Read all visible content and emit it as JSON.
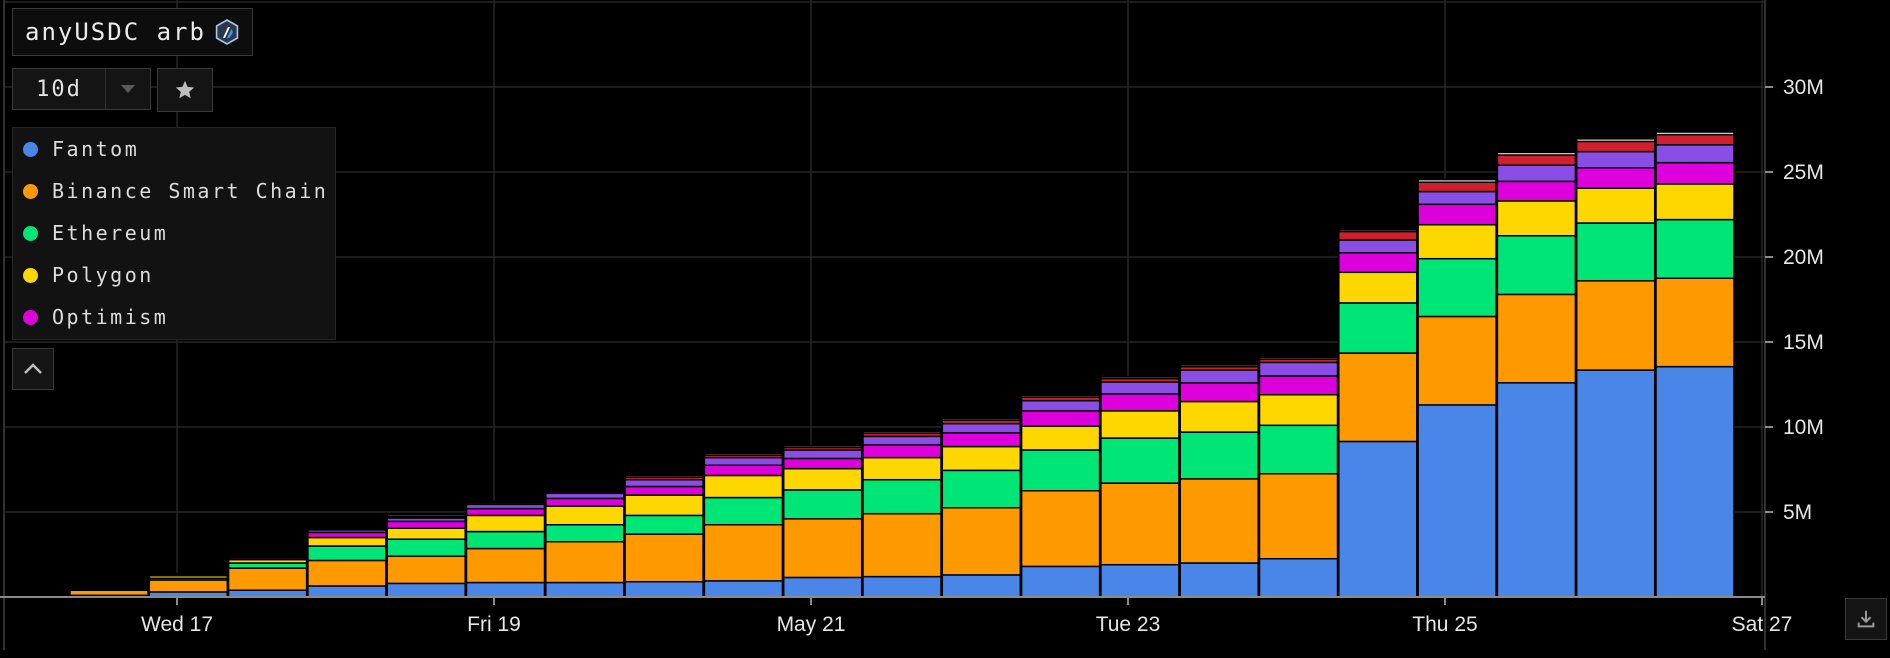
{
  "title": {
    "text": "anyUSDC arb",
    "logo_icon": "arbitrum-logo-icon"
  },
  "range": {
    "label": "10d"
  },
  "icons": {
    "caret": "chevron-down-icon",
    "star": "star-icon",
    "collapse": "chevron-up-icon",
    "download": "download-icon"
  },
  "legend": [
    {
      "label": "Fantom",
      "color": "#4a86e8"
    },
    {
      "label": "Binance Smart Chain",
      "color": "#ff9900"
    },
    {
      "label": "Ethereum",
      "color": "#00e676"
    },
    {
      "label": "Polygon",
      "color": "#ffd700"
    },
    {
      "label": "Optimism",
      "color": "#dd00dd"
    }
  ],
  "chart_data": {
    "type": "bar",
    "stacked": true,
    "x_tick_labels": [
      "Wed 17",
      "Fri 19",
      "May 21",
      "Tue 23",
      "Thu 25",
      "Sat 27"
    ],
    "y_tick_labels": [
      "5M",
      "10M",
      "15M",
      "20M",
      "25M",
      "30M"
    ],
    "ylim": [
      0,
      35
    ],
    "y_unit": "M",
    "grid": true,
    "legend_position": "top-left",
    "bar_count": 21,
    "series": [
      {
        "name": "Fantom",
        "color": "#4a86e8",
        "values": [
          0.1,
          0.3,
          0.4,
          0.65,
          0.8,
          0.85,
          0.85,
          0.9,
          0.95,
          1.15,
          1.2,
          1.3,
          1.8,
          1.9,
          2.0,
          2.25,
          9.15,
          11.3,
          12.6,
          13.35,
          13.55
        ]
      },
      {
        "name": "Binance Smart Chain",
        "color": "#ff9900",
        "values": [
          0.3,
          0.7,
          1.3,
          1.5,
          1.6,
          2.0,
          2.4,
          2.8,
          3.3,
          3.45,
          3.7,
          3.95,
          4.45,
          4.8,
          4.95,
          5.0,
          5.2,
          5.2,
          5.2,
          5.25,
          5.2
        ]
      },
      {
        "name": "Ethereum",
        "color": "#00e676",
        "values": [
          0.05,
          0.1,
          0.3,
          0.85,
          1.0,
          1.0,
          1.0,
          1.1,
          1.6,
          1.7,
          2.0,
          2.2,
          2.4,
          2.65,
          2.75,
          2.85,
          2.95,
          3.4,
          3.45,
          3.4,
          3.45
        ]
      },
      {
        "name": "Polygon",
        "color": "#ffd700",
        "values": [
          0.05,
          0.15,
          0.2,
          0.5,
          0.65,
          0.95,
          1.1,
          1.2,
          1.3,
          1.25,
          1.3,
          1.4,
          1.4,
          1.6,
          1.8,
          1.8,
          1.8,
          2.0,
          2.05,
          2.05,
          2.1
        ]
      },
      {
        "name": "Optimism",
        "color": "#dd00dd",
        "values": [
          0.03,
          0.05,
          0.1,
          0.3,
          0.4,
          0.4,
          0.45,
          0.5,
          0.6,
          0.6,
          0.75,
          0.8,
          0.9,
          1.0,
          1.1,
          1.1,
          1.15,
          1.2,
          1.15,
          1.2,
          1.25
        ]
      },
      {
        "name": "",
        "color": "#8a4ee6",
        "values": [
          0.02,
          0.03,
          0.05,
          0.15,
          0.2,
          0.25,
          0.3,
          0.4,
          0.45,
          0.5,
          0.5,
          0.55,
          0.6,
          0.7,
          0.75,
          0.8,
          0.75,
          0.75,
          0.95,
          0.95,
          1.05
        ]
      },
      {
        "name": "",
        "color": "#d0202f",
        "values": [
          0.05,
          0.03,
          0.05,
          0.08,
          0.08,
          0.1,
          0.1,
          0.15,
          0.15,
          0.15,
          0.2,
          0.2,
          0.2,
          0.2,
          0.2,
          0.2,
          0.5,
          0.55,
          0.6,
          0.6,
          0.6
        ]
      },
      {
        "name": "",
        "color": "#f2f2f2",
        "values": [
          0.02,
          0.02,
          0.03,
          0.05,
          0.1,
          0.08,
          0.08,
          0.1,
          0.1,
          0.1,
          0.1,
          0.1,
          0.1,
          0.1,
          0.1,
          0.1,
          0.1,
          0.15,
          0.15,
          0.15,
          0.15
        ]
      }
    ]
  }
}
